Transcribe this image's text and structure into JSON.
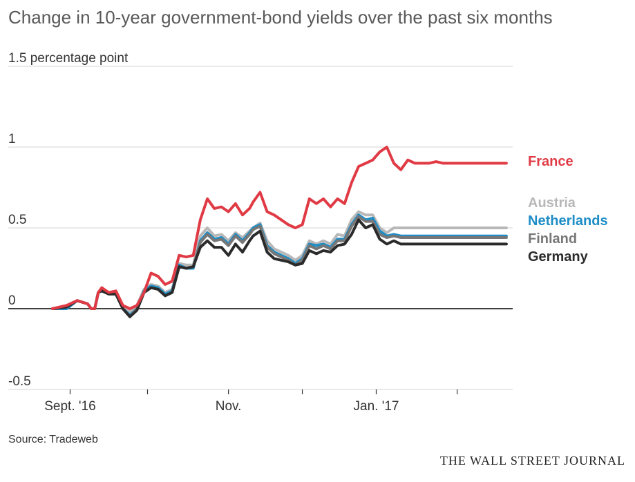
{
  "chart_data": {
    "type": "line",
    "title": "Change in 10-year government-bond yields over the past six months",
    "ylabel": "percentage point",
    "ylim": [
      -0.5,
      1.5
    ],
    "yticks": [
      {
        "value": 1.5,
        "label": "1.5 percentage point"
      },
      {
        "value": 1,
        "label": "1"
      },
      {
        "value": 0.5,
        "label": "0.5"
      },
      {
        "value": 0,
        "label": "0"
      },
      {
        "value": -0.5,
        "label": "-0.5"
      }
    ],
    "xlim": [
      0,
      130
    ],
    "xticks": [
      5,
      27,
      50,
      71,
      92,
      115
    ],
    "xtick_labels": [
      {
        "value": 5,
        "label": "Sept. '16"
      },
      {
        "value": 50,
        "label": "Nov."
      },
      {
        "value": 92,
        "label": "Jan. '17"
      }
    ],
    "x": [
      0,
      4,
      7,
      10,
      11,
      12,
      13,
      14,
      16,
      18,
      20,
      22,
      24,
      26,
      28,
      30,
      32,
      34,
      36,
      38,
      40,
      42,
      44,
      46,
      48,
      50,
      52,
      54,
      56,
      57,
      59,
      61,
      63,
      65,
      67,
      69,
      71,
      73,
      75,
      77,
      79,
      81,
      83,
      85,
      87,
      89,
      91,
      93,
      95,
      97,
      99,
      101,
      103,
      105,
      107,
      109,
      111,
      113,
      115,
      117,
      119,
      121,
      123,
      125,
      127,
      129
    ],
    "series": [
      {
        "name": "France",
        "color": "#e03a45",
        "values": [
          0,
          0.02,
          0.05,
          0.03,
          0.0,
          0.0,
          0.1,
          0.13,
          0.1,
          0.11,
          0.02,
          0.0,
          0.02,
          0.1,
          0.22,
          0.2,
          0.15,
          0.17,
          0.33,
          0.32,
          0.33,
          0.55,
          0.68,
          0.62,
          0.63,
          0.6,
          0.65,
          0.58,
          0.62,
          0.66,
          0.72,
          0.6,
          0.58,
          0.55,
          0.52,
          0.5,
          0.52,
          0.68,
          0.65,
          0.68,
          0.63,
          0.68,
          0.65,
          0.78,
          0.88,
          0.9,
          0.92,
          0.97,
          1.0,
          0.9,
          0.86,
          0.92,
          0.9,
          0.9,
          0.9,
          0.91,
          0.9,
          0.9,
          0.9,
          0.9,
          0.9,
          0.9,
          0.9,
          0.9,
          0.9,
          0.9
        ]
      },
      {
        "name": "Austria",
        "color": "#b8b8b8",
        "values": [
          0,
          0.02,
          0.05,
          0.03,
          0.0,
          0.0,
          0.1,
          0.12,
          0.1,
          0.1,
          0.02,
          -0.02,
          0.02,
          0.12,
          0.15,
          0.14,
          0.1,
          0.12,
          0.28,
          0.27,
          0.27,
          0.45,
          0.5,
          0.45,
          0.46,
          0.42,
          0.47,
          0.44,
          0.48,
          0.5,
          0.53,
          0.42,
          0.37,
          0.35,
          0.33,
          0.3,
          0.33,
          0.42,
          0.4,
          0.42,
          0.4,
          0.46,
          0.45,
          0.55,
          0.6,
          0.58,
          0.58,
          0.5,
          0.47,
          0.5,
          0.5,
          0.5,
          0.5,
          0.5,
          0.5,
          0.5,
          0.5,
          0.5,
          0.5,
          0.5,
          0.5,
          0.5,
          0.5,
          0.5,
          0.5,
          0.5
        ]
      },
      {
        "name": "Netherlands",
        "color": "#1d8dc6",
        "values": [
          0,
          0.0,
          0.05,
          0.03,
          0.0,
          0.0,
          0.1,
          0.12,
          0.1,
          0.1,
          0.0,
          -0.04,
          0.0,
          0.11,
          0.14,
          0.13,
          0.09,
          0.11,
          0.27,
          0.25,
          0.25,
          0.42,
          0.47,
          0.43,
          0.44,
          0.4,
          0.46,
          0.42,
          0.47,
          0.5,
          0.52,
          0.39,
          0.35,
          0.33,
          0.31,
          0.28,
          0.31,
          0.4,
          0.39,
          0.4,
          0.38,
          0.43,
          0.43,
          0.52,
          0.58,
          0.55,
          0.56,
          0.48,
          0.45,
          0.46,
          0.45,
          0.45,
          0.45,
          0.45,
          0.45,
          0.45,
          0.45,
          0.45,
          0.45,
          0.45,
          0.45,
          0.45,
          0.45,
          0.45,
          0.45,
          0.45
        ]
      },
      {
        "name": "Finland",
        "color": "#777777",
        "values": [
          0,
          0.01,
          0.05,
          0.03,
          0.0,
          0.0,
          0.1,
          0.12,
          0.1,
          0.1,
          0.0,
          -0.05,
          0.0,
          0.1,
          0.13,
          0.12,
          0.08,
          0.1,
          0.26,
          0.25,
          0.26,
          0.41,
          0.46,
          0.42,
          0.43,
          0.39,
          0.45,
          0.41,
          0.46,
          0.49,
          0.51,
          0.38,
          0.34,
          0.32,
          0.3,
          0.27,
          0.3,
          0.39,
          0.37,
          0.39,
          0.37,
          0.42,
          0.42,
          0.51,
          0.57,
          0.54,
          0.54,
          0.46,
          0.44,
          0.45,
          0.44,
          0.44,
          0.44,
          0.44,
          0.44,
          0.44,
          0.44,
          0.44,
          0.44,
          0.44,
          0.44,
          0.44,
          0.44,
          0.44,
          0.44,
          0.44
        ]
      },
      {
        "name": "Germany",
        "color": "#2b2b2b",
        "values": [
          0,
          0.01,
          0.05,
          0.03,
          0.0,
          0.0,
          0.1,
          0.11,
          0.09,
          0.09,
          0.0,
          -0.05,
          -0.01,
          0.1,
          0.13,
          0.12,
          0.08,
          0.1,
          0.26,
          0.25,
          0.26,
          0.38,
          0.42,
          0.38,
          0.38,
          0.33,
          0.4,
          0.35,
          0.42,
          0.45,
          0.48,
          0.35,
          0.31,
          0.3,
          0.29,
          0.27,
          0.28,
          0.36,
          0.34,
          0.36,
          0.35,
          0.39,
          0.4,
          0.46,
          0.55,
          0.5,
          0.52,
          0.43,
          0.4,
          0.42,
          0.4,
          0.4,
          0.4,
          0.4,
          0.4,
          0.4,
          0.4,
          0.4,
          0.4,
          0.4,
          0.4,
          0.4,
          0.4,
          0.4,
          0.4,
          0.4
        ]
      }
    ],
    "legend": [
      "France",
      "Austria",
      "Netherlands",
      "Finland",
      "Germany"
    ]
  },
  "source": "Source: Tradeweb",
  "brand": "THE WALL STREET JOURNAL"
}
